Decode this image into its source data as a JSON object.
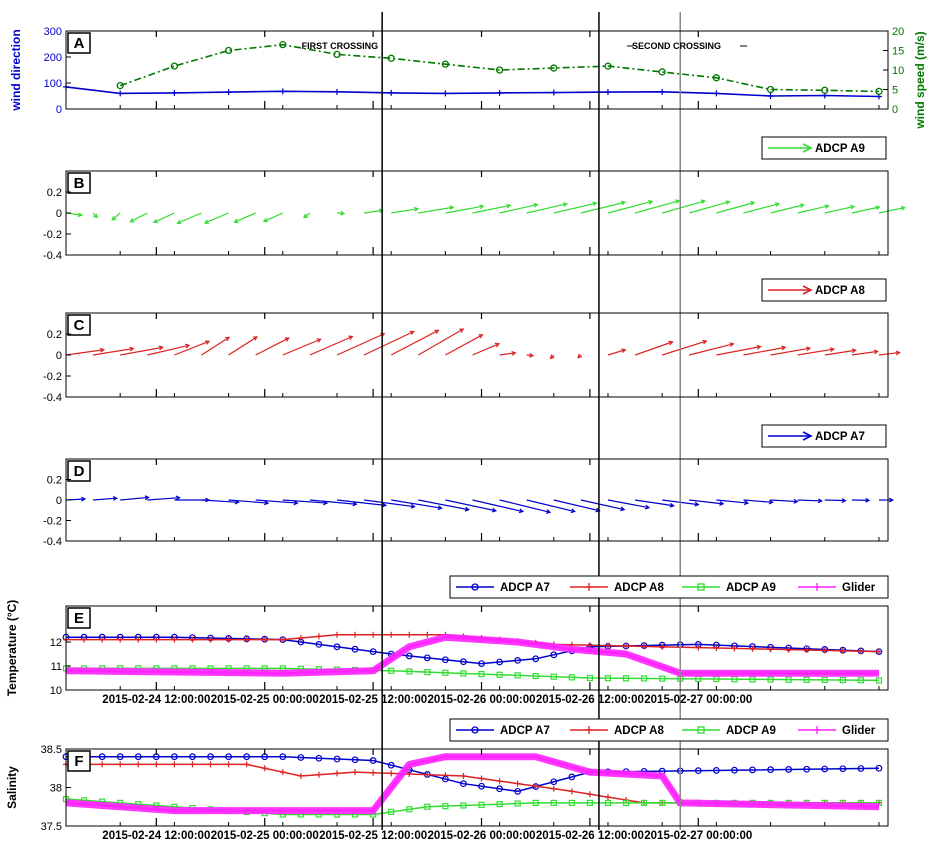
{
  "chart_data": [
    {
      "panel": "A",
      "type": "line",
      "xlim": [
        "2015-02-24 02:00:00",
        "2015-02-27 21:00:00"
      ],
      "left_axis": {
        "label": "wind direction",
        "ylim": [
          0,
          300
        ],
        "ticks": [
          0,
          100,
          200,
          300
        ]
      },
      "right_axis": {
        "label": "wind speed (m/s)",
        "ylim": [
          0,
          20
        ],
        "ticks": [
          0,
          5,
          10,
          15,
          20
        ]
      },
      "series": [
        {
          "color": "#0000cc",
          "axis": "left",
          "marker": "plus",
          "x": [
            "2015-02-24 02:00:00",
            "2015-02-24 08:00:00",
            "2015-02-24 14:00:00",
            "2015-02-24 20:00:00",
            "2015-02-25 02:00:00",
            "2015-02-25 08:00:00",
            "2015-02-25 14:00:00",
            "2015-02-25 20:00:00",
            "2015-02-26 02:00:00",
            "2015-02-26 08:00:00",
            "2015-02-26 14:00:00",
            "2015-02-26 20:00:00",
            "2015-02-27 02:00:00",
            "2015-02-27 08:00:00",
            "2015-02-27 14:00:00",
            "2015-02-27 20:00:00"
          ],
          "values": [
            85,
            60,
            62,
            65,
            68,
            66,
            62,
            60,
            62,
            63,
            65,
            66,
            60,
            50,
            52,
            48
          ]
        },
        {
          "color": "#007700",
          "axis": "right",
          "marker": "circle",
          "x": [
            "2015-02-24 08:00:00",
            "2015-02-24 14:00:00",
            "2015-02-24 20:00:00",
            "2015-02-25 02:00:00",
            "2015-02-25 08:00:00",
            "2015-02-25 14:00:00",
            "2015-02-25 20:00:00",
            "2015-02-26 02:00:00",
            "2015-02-26 08:00:00",
            "2015-02-26 14:00:00",
            "2015-02-26 20:00:00",
            "2015-02-27 02:00:00",
            "2015-02-27 08:00:00",
            "2015-02-27 14:00:00",
            "2015-02-27 20:00:00"
          ],
          "values": [
            6,
            11,
            15,
            16.5,
            14,
            13,
            11.5,
            10,
            10.5,
            11,
            9.5,
            8,
            5,
            4.8,
            4.5
          ]
        }
      ],
      "annotations": [
        {
          "text": "FIRST CROSSING",
          "x": "2015-02-25 13:00:00"
        },
        {
          "text": "SECOND CROSSING",
          "x": "2015-02-26 16:00:00"
        }
      ]
    },
    {
      "panel": "B",
      "type": "quiver",
      "legend": "ADCP A9",
      "color": "#33dd33",
      "ylim": [
        -0.4,
        0.4
      ],
      "ticks": [
        -0.4,
        -0.2,
        0,
        0.2
      ],
      "x": [
        "2015-02-24 02:00:00",
        "2015-02-24 10:00:00",
        "2015-02-24 18:00:00",
        "2015-02-25 02:00:00",
        "2015-02-25 10:00:00",
        "2015-02-25 18:00:00",
        "2015-02-26 02:00:00",
        "2015-02-26 10:00:00",
        "2015-02-26 18:00:00",
        "2015-02-27 02:00:00",
        "2015-02-27 10:00:00",
        "2015-02-27 21:00:00"
      ],
      "u": [
        0.05,
        -0.05,
        -0.08,
        -0.06,
        0.05,
        0.12,
        0.12,
        0.14,
        0.14,
        0.12,
        0.1,
        0.08
      ],
      "v": [
        -0.02,
        -0.08,
        -0.1,
        -0.08,
        0.02,
        0.06,
        0.08,
        0.1,
        0.12,
        0.1,
        0.07,
        0.05
      ]
    },
    {
      "panel": "C",
      "type": "quiver",
      "legend": "ADCP A8",
      "color": "#dd2222",
      "ylim": [
        -0.4,
        0.4
      ],
      "ticks": [
        -0.4,
        -0.2,
        0,
        0.2
      ],
      "x": [
        "2015-02-24 02:00:00",
        "2015-02-24 10:00:00",
        "2015-02-24 18:00:00",
        "2015-02-25 02:00:00",
        "2015-02-25 10:00:00",
        "2015-02-25 18:00:00",
        "2015-02-26 02:00:00",
        "2015-02-26 10:00:00",
        "2015-02-26 18:00:00",
        "2015-02-27 02:00:00",
        "2015-02-27 10:00:00",
        "2015-02-27 21:00:00"
      ],
      "u": [
        0.12,
        0.14,
        0.08,
        0.12,
        0.16,
        0.14,
        0.05,
        -0.03,
        0.14,
        0.14,
        0.12,
        0.06
      ],
      "v": [
        0.05,
        0.08,
        0.18,
        0.15,
        0.22,
        0.25,
        0.02,
        -0.05,
        0.15,
        0.08,
        0.06,
        0.02
      ]
    },
    {
      "panel": "D",
      "type": "quiver",
      "legend": "ADCP A7",
      "color": "#0000cc",
      "ylim": [
        -0.4,
        0.4
      ],
      "ticks": [
        -0.4,
        -0.2,
        0,
        0.2
      ],
      "x": [
        "2015-02-24 02:00:00",
        "2015-02-24 10:00:00",
        "2015-02-24 18:00:00",
        "2015-02-25 02:00:00",
        "2015-02-25 10:00:00",
        "2015-02-25 18:00:00",
        "2015-02-26 02:00:00",
        "2015-02-26 10:00:00",
        "2015-02-26 18:00:00",
        "2015-02-27 02:00:00",
        "2015-02-27 10:00:00",
        "2015-02-27 21:00:00"
      ],
      "u": [
        0.06,
        0.1,
        0.12,
        0.14,
        0.16,
        0.16,
        0.16,
        0.14,
        0.12,
        0.1,
        0.08,
        0.04
      ],
      "v": [
        0.01,
        0.03,
        -0.03,
        -0.03,
        -0.06,
        -0.1,
        -0.12,
        -0.1,
        -0.05,
        -0.03,
        -0.01,
        0
      ]
    },
    {
      "panel": "E",
      "type": "line",
      "ylabel": "Temperature (°C)",
      "ylim": [
        10,
        13.5
      ],
      "ticks": [
        10,
        11,
        12
      ],
      "legend": [
        "ADCP A7",
        "ADCP A8",
        "ADCP A9",
        "Glider"
      ],
      "series": [
        {
          "name": "ADCP A7",
          "color": "#0000cc",
          "marker": "circle",
          "x": [
            "2015-02-24 02:00:00",
            "2015-02-24 14:00:00",
            "2015-02-25 02:00:00",
            "2015-02-25 14:00:00",
            "2015-02-26 00:00:00",
            "2015-02-26 06:00:00",
            "2015-02-26 12:00:00",
            "2015-02-27 00:00:00",
            "2015-02-27 20:00:00"
          ],
          "values": [
            12.2,
            12.2,
            12.1,
            11.5,
            11.1,
            11.3,
            11.8,
            11.9,
            11.6
          ]
        },
        {
          "name": "ADCP A8",
          "color": "#dd2222",
          "marker": "plus",
          "x": [
            "2015-02-24 02:00:00",
            "2015-02-25 02:00:00",
            "2015-02-25 08:00:00",
            "2015-02-25 20:00:00",
            "2015-02-26 08:00:00",
            "2015-02-27 20:00:00"
          ],
          "values": [
            12.1,
            12.1,
            12.3,
            12.3,
            11.9,
            11.6
          ]
        },
        {
          "name": "ADCP A9",
          "color": "#33dd33",
          "marker": "square",
          "x": [
            "2015-02-24 02:00:00",
            "2015-02-25 02:00:00",
            "2015-02-25 14:00:00",
            "2015-02-26 12:00:00",
            "2015-02-27 20:00:00"
          ],
          "values": [
            10.9,
            10.9,
            10.8,
            10.5,
            10.4
          ]
        },
        {
          "name": "Glider",
          "color": "#ff22ff",
          "marker": "none",
          "x": [
            "2015-02-24 02:00:00",
            "2015-02-25 02:00:00",
            "2015-02-25 12:00:00",
            "2015-02-25 16:00:00",
            "2015-02-25 20:00:00",
            "2015-02-26 04:00:00",
            "2015-02-26 10:00:00",
            "2015-02-26 16:00:00",
            "2015-02-26 22:00:00",
            "2015-02-27 04:00:00",
            "2015-02-27 20:00:00"
          ],
          "values": [
            10.8,
            10.7,
            10.8,
            11.8,
            12.2,
            12.0,
            11.7,
            11.5,
            10.7,
            10.7,
            10.7
          ]
        }
      ]
    },
    {
      "panel": "F",
      "type": "line",
      "ylabel": "Salinity",
      "ylim": [
        37.5,
        38.5
      ],
      "ticks": [
        37.5,
        38,
        38.5
      ],
      "legend": [
        "ADCP A7",
        "ADCP A8",
        "ADCP A9",
        "Glider"
      ],
      "series": [
        {
          "name": "ADCP A7",
          "color": "#0000cc",
          "marker": "circle",
          "x": [
            "2015-02-24 02:00:00",
            "2015-02-25 02:00:00",
            "2015-02-25 12:00:00",
            "2015-02-25 22:00:00",
            "2015-02-26 04:00:00",
            "2015-02-26 12:00:00",
            "2015-02-27 20:00:00"
          ],
          "values": [
            38.4,
            38.4,
            38.35,
            38.05,
            37.95,
            38.2,
            38.25
          ]
        },
        {
          "name": "ADCP A8",
          "color": "#dd2222",
          "marker": "plus",
          "x": [
            "2015-02-24 02:00:00",
            "2015-02-24 22:00:00",
            "2015-02-25 04:00:00",
            "2015-02-25 10:00:00",
            "2015-02-25 22:00:00",
            "2015-02-26 10:00:00",
            "2015-02-26 18:00:00",
            "2015-02-27 20:00:00"
          ],
          "values": [
            38.3,
            38.3,
            38.15,
            38.2,
            38.15,
            37.95,
            37.8,
            37.8
          ]
        },
        {
          "name": "ADCP A9",
          "color": "#33dd33",
          "marker": "square",
          "x": [
            "2015-02-24 02:00:00",
            "2015-02-24 14:00:00",
            "2015-02-25 02:00:00",
            "2015-02-25 12:00:00",
            "2015-02-25 18:00:00",
            "2015-02-26 06:00:00",
            "2015-02-27 20:00:00"
          ],
          "values": [
            37.85,
            37.75,
            37.65,
            37.65,
            37.75,
            37.8,
            37.8
          ]
        },
        {
          "name": "Glider",
          "color": "#ff22ff",
          "marker": "none",
          "x": [
            "2015-02-24 02:00:00",
            "2015-02-24 14:00:00",
            "2015-02-25 02:00:00",
            "2015-02-25 12:00:00",
            "2015-02-25 16:00:00",
            "2015-02-25 20:00:00",
            "2015-02-26 06:00:00",
            "2015-02-26 12:00:00",
            "2015-02-26 20:00:00",
            "2015-02-26 22:00:00",
            "2015-02-27 20:00:00"
          ],
          "values": [
            37.8,
            37.7,
            37.7,
            37.7,
            38.3,
            38.4,
            38.4,
            38.2,
            38.15,
            37.8,
            37.75
          ]
        }
      ]
    }
  ],
  "x_tick_labels": [
    "2015-02-24 12:00:00",
    "2015-02-25 00:00:00",
    "2015-02-25 12:00:00",
    "2015-02-26 00:00:00",
    "2015-02-26 12:00:00",
    "2015-02-27 00:00:00"
  ],
  "x_tick_values": [
    "2015-02-24 12:00:00",
    "2015-02-25 00:00:00",
    "2015-02-25 12:00:00",
    "2015-02-26 00:00:00",
    "2015-02-26 12:00:00",
    "2015-02-27 00:00:00"
  ],
  "minor_tick_hours": 6,
  "vertical_lines": [
    {
      "x": "2015-02-25 13:00:00",
      "color": "#000000"
    },
    {
      "x": "2015-02-26 13:00:00",
      "color": "#000000"
    },
    {
      "x": "2015-02-26 22:00:00",
      "color": "#888888"
    }
  ]
}
